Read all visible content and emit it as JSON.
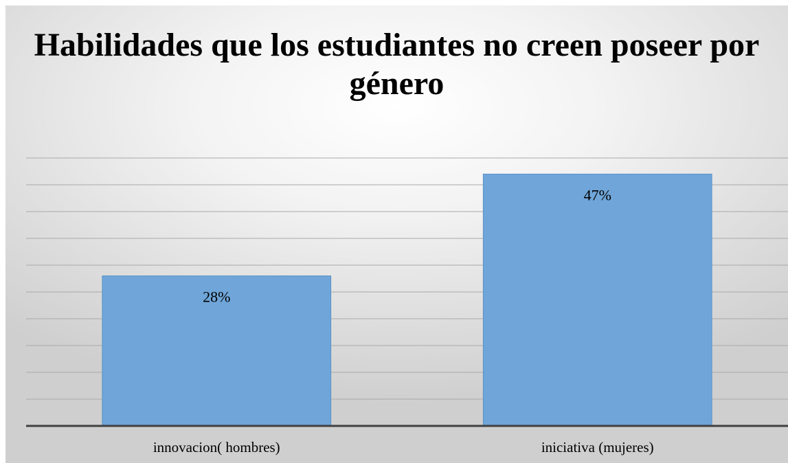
{
  "chart_data": {
    "type": "bar",
    "title": "Habilidades que los estudiantes no creen poseer por género",
    "categories": [
      "innovacion( hombres)",
      "iniciativa (mujeres)"
    ],
    "values": [
      28,
      47
    ],
    "data_labels": [
      "28%",
      "47%"
    ],
    "xlabel": "",
    "ylabel": "",
    "ylim": [
      0,
      50
    ],
    "grid": true,
    "legend": "none",
    "colors": {
      "bar": "#6fa5d8",
      "bar_edge": "#5b93c8",
      "gridline": "#a9a9a9",
      "axis": "#404040"
    }
  }
}
